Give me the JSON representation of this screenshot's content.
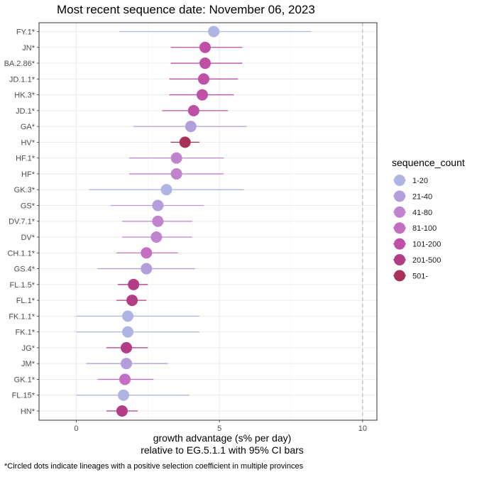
{
  "chart_data": {
    "type": "scatter",
    "title": "Most recent sequence date: November 06, 2023",
    "xlabel_line1": "growth advantage (s% per day)",
    "xlabel_line2": "relative to  EG.5.1.1  with 95% CI bars",
    "xlim": [
      -1.3,
      10.5
    ],
    "x_ticks": [
      0,
      5,
      10
    ],
    "reference_line_x": 10,
    "grid": true,
    "legend_title": "sequence_count",
    "legend_position": "right",
    "legend": [
      {
        "label": "1-20",
        "color": "#aeb5e3"
      },
      {
        "label": "21-40",
        "color": "#b39ddb"
      },
      {
        "label": "41-80",
        "color": "#c084cf"
      },
      {
        "label": "81-100",
        "color": "#c46ec1"
      },
      {
        "label": "101-200",
        "color": "#be50a5"
      },
      {
        "label": "201-500",
        "color": "#b23d84"
      },
      {
        "label": "501-",
        "color": "#a8305a"
      }
    ],
    "lineages": [
      {
        "name": "FY.1*",
        "value": 4.8,
        "lo": 1.5,
        "hi": 8.2,
        "count_bin": "1-20"
      },
      {
        "name": "JN*",
        "value": 4.5,
        "lo": 3.3,
        "hi": 5.8,
        "count_bin": "101-200"
      },
      {
        "name": "BA.2.86*",
        "value": 4.5,
        "lo": 3.3,
        "hi": 5.8,
        "count_bin": "101-200"
      },
      {
        "name": "JD.1.1*",
        "value": 4.45,
        "lo": 3.25,
        "hi": 5.65,
        "count_bin": "101-200"
      },
      {
        "name": "HK.3*",
        "value": 4.4,
        "lo": 3.25,
        "hi": 5.5,
        "count_bin": "101-200"
      },
      {
        "name": "JD.1*",
        "value": 4.1,
        "lo": 3.0,
        "hi": 5.3,
        "count_bin": "101-200"
      },
      {
        "name": "GA*",
        "value": 4.0,
        "lo": 2.0,
        "hi": 5.95,
        "count_bin": "21-40"
      },
      {
        "name": "HV*",
        "value": 3.8,
        "lo": 3.3,
        "hi": 4.3,
        "count_bin": "501-"
      },
      {
        "name": "HF.1*",
        "value": 3.5,
        "lo": 1.85,
        "hi": 5.15,
        "count_bin": "41-80"
      },
      {
        "name": "HF*",
        "value": 3.5,
        "lo": 1.85,
        "hi": 5.15,
        "count_bin": "41-80"
      },
      {
        "name": "GK.3*",
        "value": 3.15,
        "lo": 0.45,
        "hi": 5.85,
        "count_bin": "1-20"
      },
      {
        "name": "GS*",
        "value": 2.85,
        "lo": 1.2,
        "hi": 4.45,
        "count_bin": "21-40"
      },
      {
        "name": "DV.7.1*",
        "value": 2.85,
        "lo": 1.6,
        "hi": 4.05,
        "count_bin": "41-80"
      },
      {
        "name": "DV*",
        "value": 2.8,
        "lo": 1.6,
        "hi": 4.05,
        "count_bin": "41-80"
      },
      {
        "name": "CH.1.1*",
        "value": 2.45,
        "lo": 1.4,
        "hi": 3.55,
        "count_bin": "81-100"
      },
      {
        "name": "GS.4*",
        "value": 2.45,
        "lo": 0.75,
        "hi": 4.15,
        "count_bin": "21-40"
      },
      {
        "name": "FL.1.5*",
        "value": 2.0,
        "lo": 1.45,
        "hi": 2.5,
        "count_bin": "201-500"
      },
      {
        "name": "FL.1*",
        "value": 1.95,
        "lo": 1.4,
        "hi": 2.45,
        "count_bin": "201-500"
      },
      {
        "name": "FK.1.1*",
        "value": 1.8,
        "lo": 0.0,
        "hi": 4.3,
        "count_bin": "1-20"
      },
      {
        "name": "FK.1*",
        "value": 1.8,
        "lo": 0.0,
        "hi": 4.3,
        "count_bin": "1-20"
      },
      {
        "name": "JG*",
        "value": 1.75,
        "lo": 1.05,
        "hi": 2.5,
        "count_bin": "201-500"
      },
      {
        "name": "JM*",
        "value": 1.75,
        "lo": 0.35,
        "hi": 3.2,
        "count_bin": "21-40"
      },
      {
        "name": "GK.1*",
        "value": 1.7,
        "lo": 0.75,
        "hi": 2.7,
        "count_bin": "81-100"
      },
      {
        "name": "FL.15*",
        "value": 1.65,
        "lo": 0.0,
        "hi": 3.95,
        "count_bin": "1-20"
      },
      {
        "name": "HN*",
        "value": 1.6,
        "lo": 1.05,
        "hi": 2.15,
        "count_bin": "201-500"
      }
    ]
  },
  "footnote": "*Circled dots indicate lineages with a positive selection coefficient in multiple provinces"
}
